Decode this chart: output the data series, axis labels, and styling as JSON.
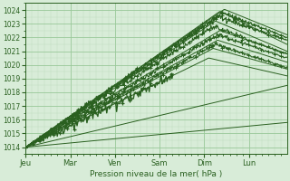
{
  "bg_color": "#d8ecd8",
  "plot_bg_color": "#d8ecd8",
  "grid_color_major": "#98c898",
  "grid_color_minor": "#b8d8b8",
  "line_color": "#2a6020",
  "text_color": "#2a6020",
  "ylabel_text": "Pression niveau de la mer( hPa )",
  "x_labels": [
    "Jeu",
    "Mar",
    "Ven",
    "Sam",
    "Dim",
    "Lun"
  ],
  "ylim": [
    1013.5,
    1024.5
  ],
  "xlim": [
    0,
    5.85
  ],
  "yticks": [
    1014,
    1015,
    1016,
    1017,
    1018,
    1019,
    1020,
    1021,
    1022,
    1023,
    1024
  ],
  "figsize": [
    3.2,
    2.0
  ],
  "dpi": 100
}
